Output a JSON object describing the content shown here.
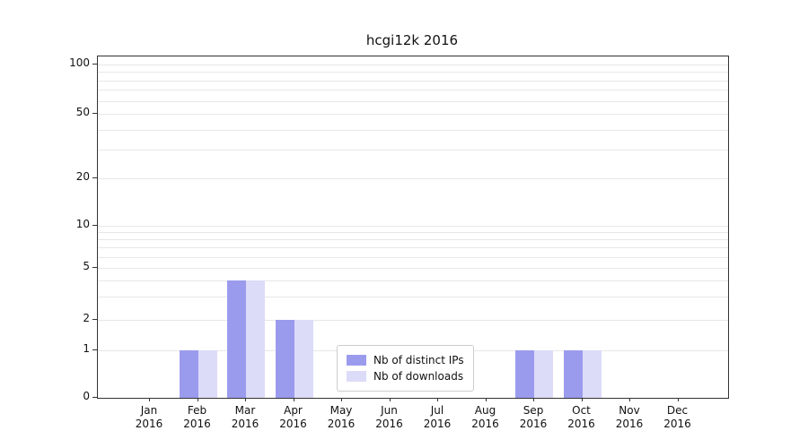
{
  "chart_data": {
    "type": "bar",
    "title": "hcgi12k 2016",
    "categories": [
      "Jan 2016",
      "Feb 2016",
      "Mar 2016",
      "Apr 2016",
      "May 2016",
      "Jun 2016",
      "Jul 2016",
      "Aug 2016",
      "Sep 2016",
      "Oct 2016",
      "Nov 2016",
      "Dec 2016"
    ],
    "series": [
      {
        "name": "Nb of distinct IPs",
        "color": "#9b9bee",
        "values": [
          0,
          1,
          4,
          2,
          0,
          0,
          0,
          0,
          1,
          1,
          0,
          0
        ]
      },
      {
        "name": "Nb of downloads",
        "color": "#dcdcf8",
        "values": [
          0,
          1,
          4,
          2,
          0,
          0,
          0,
          0,
          1,
          1,
          0,
          0
        ]
      }
    ],
    "yscale": "log-like",
    "y_ticks": [
      0,
      1,
      2,
      5,
      10,
      20,
      50,
      100
    ],
    "ylim": [
      0,
      100
    ],
    "grid": "horizontal",
    "legend_position": "bottom-center"
  }
}
